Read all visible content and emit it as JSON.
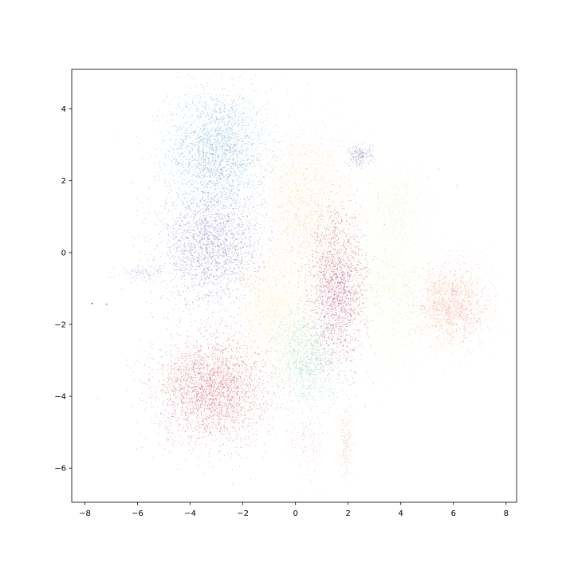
{
  "chart_data": {
    "type": "scatter",
    "title": "",
    "xlabel": "",
    "ylabel": "",
    "xlim": [
      -8.5,
      8.4
    ],
    "ylim": [
      -6.95,
      5.1
    ],
    "xticks": [
      -8,
      -6,
      -4,
      -2,
      0,
      2,
      4,
      6,
      8
    ],
    "yticks": [
      -6,
      -4,
      -2,
      0,
      2,
      4
    ],
    "xtick_labels": [
      "−8",
      "−6",
      "−4",
      "−2",
      "0",
      "2",
      "4",
      "6",
      "8"
    ],
    "ytick_labels": [
      "−6",
      "−4",
      "−2",
      "0",
      "2",
      "4"
    ],
    "grid": false,
    "legend": "none",
    "colormap": "Spectral",
    "clusters": [
      {
        "color": "#4a98c9",
        "center": [
          -3.0,
          2.85
        ],
        "spread": [
          0.95,
          0.85
        ],
        "count": 2600
      },
      {
        "color": "#6a5fad",
        "center": [
          -3.2,
          0.2
        ],
        "spread": [
          0.95,
          0.8
        ],
        "count": 2300
      },
      {
        "color": "#fdbf6f",
        "center": [
          0.4,
          1.1
        ],
        "spread": [
          0.85,
          1.15
        ],
        "count": 2100
      },
      {
        "color": "#ab1f4d",
        "center": [
          1.6,
          -1.0
        ],
        "spread": [
          0.55,
          1.05
        ],
        "count": 2000
      },
      {
        "color": "#e5f4a3",
        "center": [
          3.6,
          -0.8
        ],
        "spread": [
          0.75,
          1.2
        ],
        "count": 1900
      },
      {
        "color": "#f78a61",
        "center": [
          5.9,
          -1.45
        ],
        "spread": [
          0.7,
          0.55
        ],
        "count": 1500
      },
      {
        "color": "#fbe28c",
        "center": [
          -0.8,
          -1.6
        ],
        "spread": [
          0.85,
          0.8
        ],
        "count": 1600
      },
      {
        "color": "#7fcaa6",
        "center": [
          0.4,
          -2.9
        ],
        "spread": [
          0.65,
          0.7
        ],
        "count": 1300
      },
      {
        "color": "#cf3e4f",
        "center": [
          -3.2,
          -3.8
        ],
        "spread": [
          1.05,
          0.75
        ],
        "count": 3200
      },
      {
        "color": "#7a65b0",
        "center": [
          2.4,
          2.7
        ],
        "spread": [
          0.25,
          0.15
        ],
        "count": 200
      },
      {
        "color": "#d8efb0",
        "center": [
          3.9,
          1.4
        ],
        "spread": [
          0.55,
          0.5
        ],
        "count": 500
      },
      {
        "color": "#e49a72",
        "center": [
          1.9,
          -5.3
        ],
        "spread": [
          0.12,
          0.55
        ],
        "count": 160
      },
      {
        "color": "#ee9a7a",
        "center": [
          0.4,
          -5.2
        ],
        "spread": [
          0.35,
          0.5
        ],
        "count": 140
      },
      {
        "color": "#7a8cc6",
        "center": [
          -5.8,
          -0.55
        ],
        "spread": [
          0.45,
          0.12
        ],
        "count": 120
      }
    ],
    "outliers": [
      {
        "x": -7.75,
        "y": -1.4,
        "color": "#d7191c"
      },
      {
        "x": -7.2,
        "y": -1.42,
        "color": "#f46d43"
      },
      {
        "x": 5.45,
        "y": 2.35,
        "color": "#d8efb0"
      },
      {
        "x": 6.1,
        "y": 1.85,
        "color": "#d8efb0"
      },
      {
        "x": 6.15,
        "y": 1.9,
        "color": "#e6f598"
      },
      {
        "x": 5.0,
        "y": 2.1,
        "color": "#d8efb0"
      }
    ]
  }
}
